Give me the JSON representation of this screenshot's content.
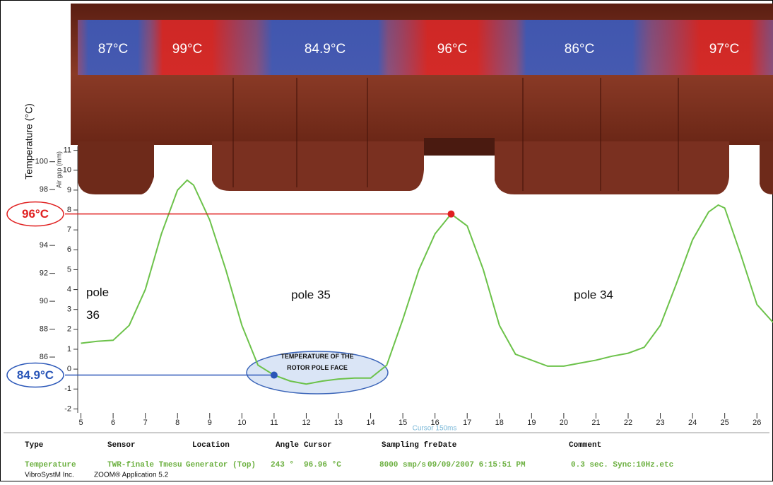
{
  "chart_data": {
    "type": "line",
    "x": [
      5,
      5.5,
      6,
      6.5,
      7,
      7.5,
      8,
      8.3,
      8.5,
      9,
      9.5,
      10,
      10.5,
      11,
      11.5,
      12,
      12.5,
      13,
      13.5,
      14,
      14.5,
      15,
      15.5,
      16,
      16.5,
      17,
      17.5,
      18,
      18.5,
      19,
      19.5,
      20,
      20.5,
      21,
      21.5,
      22,
      22.5,
      23,
      23.5,
      24,
      24.5,
      24.8,
      25,
      25.5,
      26,
      26.5
    ],
    "series": [
      {
        "color": "#6cc24a",
        "values": [
          1.3,
          1.4,
          1.45,
          2.2,
          4.0,
          6.8,
          9.0,
          9.5,
          9.25,
          7.5,
          5.0,
          2.2,
          0.2,
          -0.3,
          -0.6,
          -0.75,
          -0.6,
          -0.5,
          -0.45,
          -0.45,
          0.2,
          2.5,
          5.0,
          6.8,
          7.8,
          7.2,
          5.0,
          2.2,
          0.75,
          0.45,
          0.15,
          0.15,
          0.3,
          0.45,
          0.65,
          0.8,
          1.1,
          2.2,
          4.3,
          6.5,
          7.9,
          8.25,
          8.1,
          5.75,
          3.25,
          2.35
        ]
      }
    ],
    "xlim": [
      4.9,
      26.5
    ],
    "xticks": [
      5,
      6,
      7,
      8,
      9,
      10,
      11,
      12,
      13,
      14,
      15,
      16,
      17,
      18,
      19,
      20,
      21,
      22,
      23,
      24,
      25,
      26
    ],
    "ylim": [
      -2.2,
      11.2
    ],
    "yticks": [
      -2,
      -1,
      0,
      1,
      2,
      3,
      4,
      5,
      6,
      7,
      8,
      9,
      10,
      11
    ],
    "y2lim": [
      82,
      101.1
    ],
    "y2ticks": [
      86,
      88,
      90,
      92,
      94,
      98,
      100
    ],
    "y_label": "Air gap (mm)",
    "y2_label": "Temperature (°C)",
    "cursor_label": "Cursor 150ms",
    "markers": [
      {
        "label": "96°C",
        "x": 16.5,
        "y": 7.8,
        "color": "#e02020"
      },
      {
        "label": "84.9°C",
        "x": 11,
        "y": -0.3,
        "color": "#2a56b8"
      }
    ],
    "callout": "Temperature of the rotor pole face",
    "pole_labels": [
      "pole 36",
      "pole 35",
      "pole 34"
    ],
    "thermal_band": {
      "labels": [
        "87°C",
        "99°C",
        "84.9°C",
        "96°C",
        "86°C",
        "97°C"
      ],
      "colors": [
        "#3a5fc8",
        "#e02828",
        "#3a5fc8",
        "#e02828",
        "#3a5fc8",
        "#e02828"
      ]
    }
  },
  "table": {
    "headers": [
      "Type",
      "Sensor",
      "Location",
      "Angle",
      "Cursor",
      "Sampling fre",
      "Date",
      "Comment"
    ],
    "row": [
      "Temperature",
      "TWR-finale Tmesu",
      "Generator (Top)",
      "243 °",
      "96.96 °C",
      "8000 smp/s",
      "09/09/2007 6:15:51 PM",
      "0.3 sec. Sync:10Hz.etc"
    ]
  },
  "footer": [
    "VibroSystM Inc.",
    "ZOOM® Application 5.2"
  ]
}
